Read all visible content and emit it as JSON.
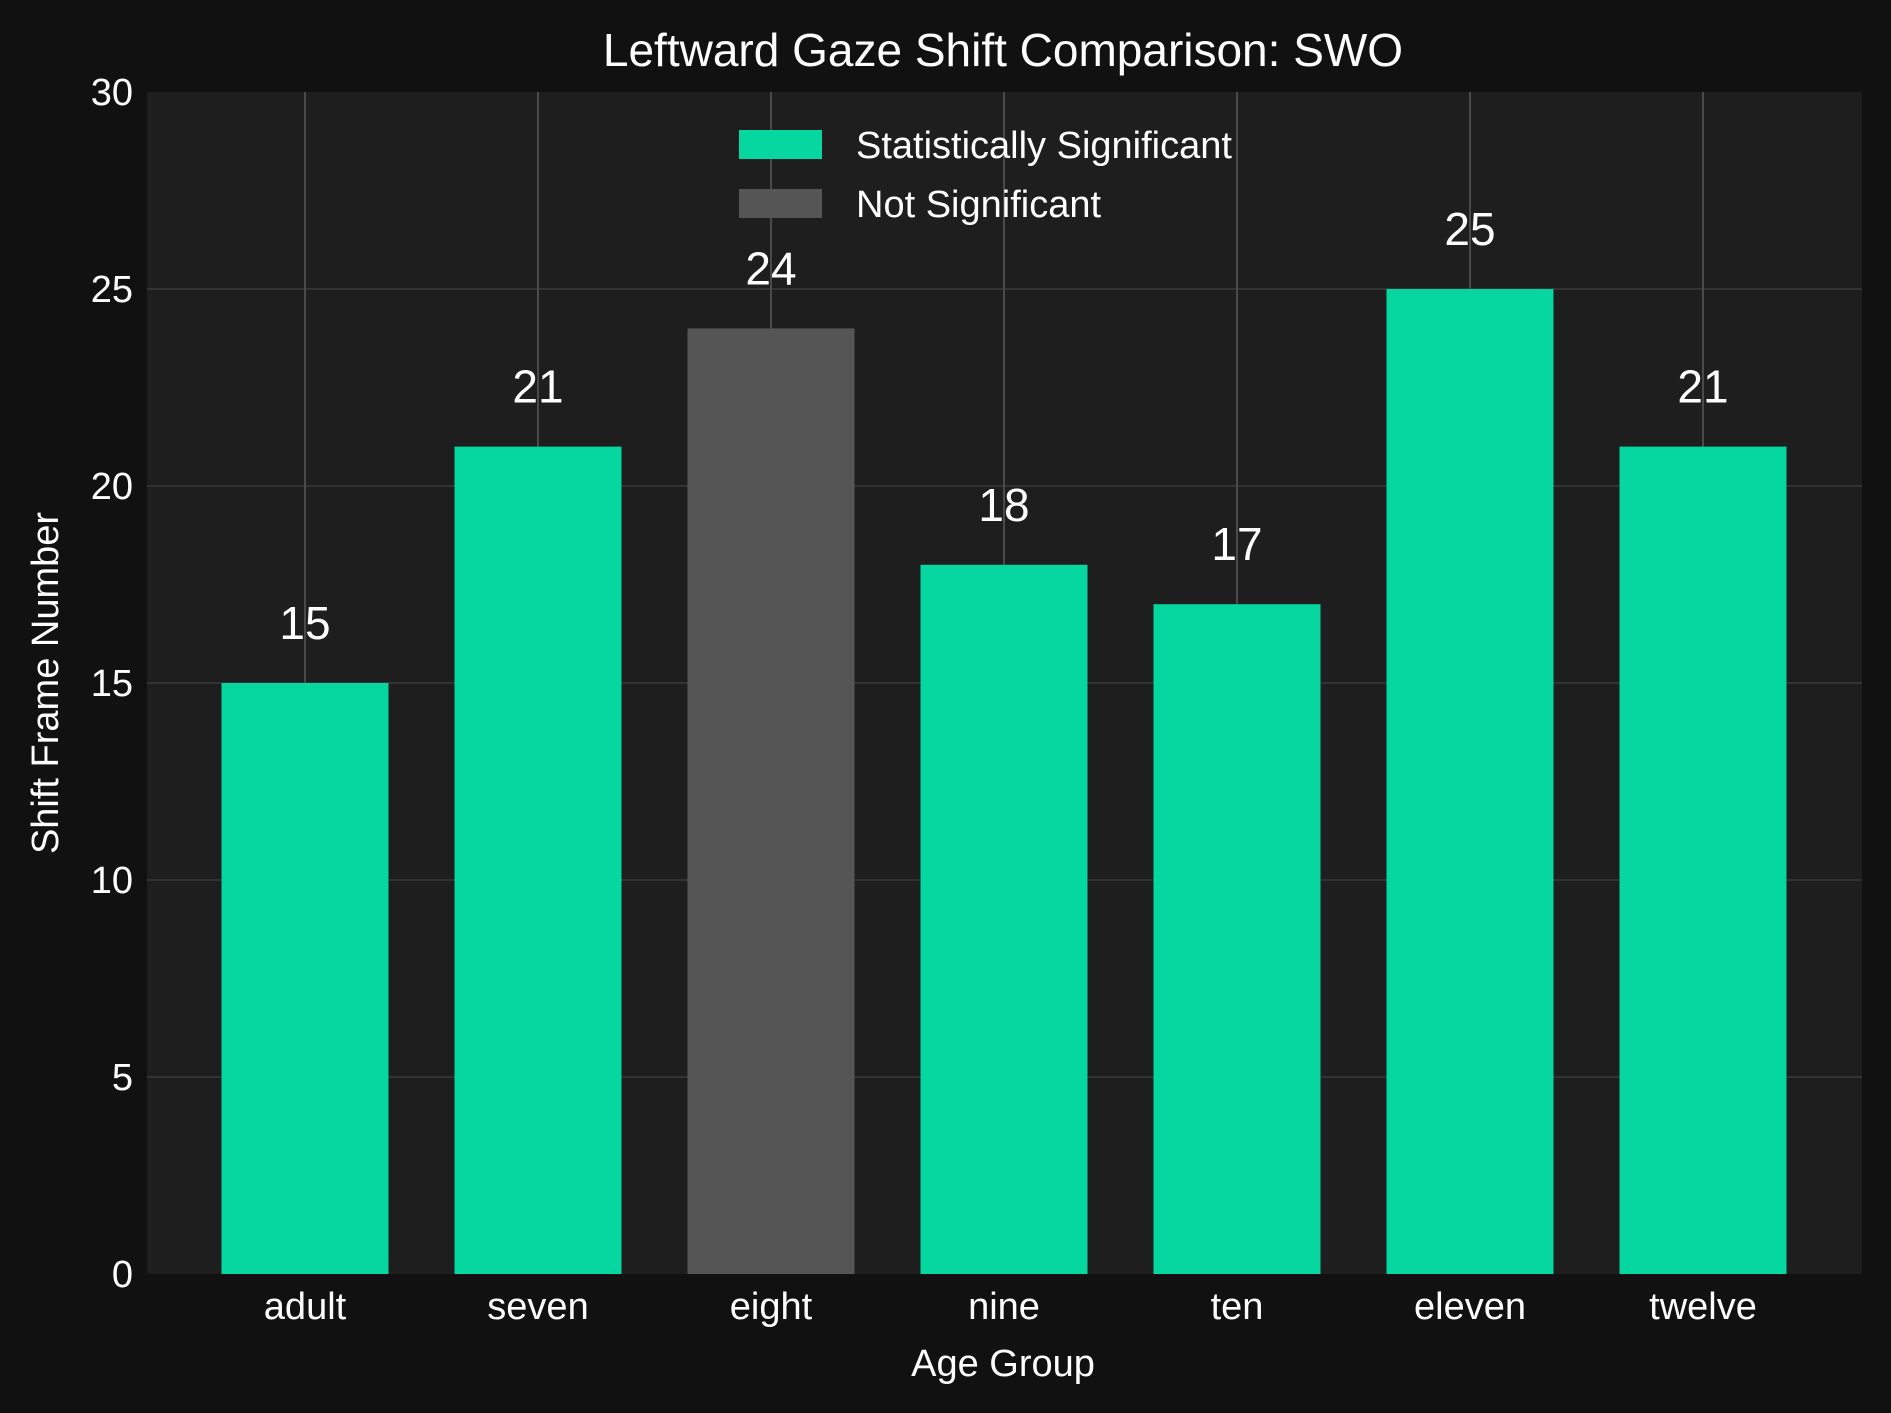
{
  "chart_data": {
    "type": "bar",
    "title": "Leftward Gaze Shift Comparison: SWO",
    "xlabel": "Age Group",
    "ylabel": "Shift Frame Number",
    "categories": [
      "adult",
      "seven",
      "eight",
      "nine",
      "ten",
      "eleven",
      "twelve"
    ],
    "values": [
      15,
      21,
      24,
      18,
      17,
      25,
      21
    ],
    "significance": [
      "Statistically Significant",
      "Statistically Significant",
      "Not Significant",
      "Statistically Significant",
      "Statistically Significant",
      "Statistically Significant",
      "Statistically Significant"
    ],
    "ylim": [
      0,
      30
    ],
    "yticks": [
      0,
      5,
      10,
      15,
      20,
      25,
      30
    ],
    "grid": true,
    "legend": {
      "placement": "top-center",
      "entries": [
        {
          "label": "Statistically Significant",
          "color": "#06d6a0"
        },
        {
          "label": "Not Significant",
          "color": "#555555"
        }
      ]
    },
    "colors": {
      "significant": "#06d6a0",
      "not_significant": "#555555",
      "background": "#111111",
      "plot_background": "#1e1e1e",
      "grid": "#333333",
      "text": "#ffffff"
    }
  }
}
